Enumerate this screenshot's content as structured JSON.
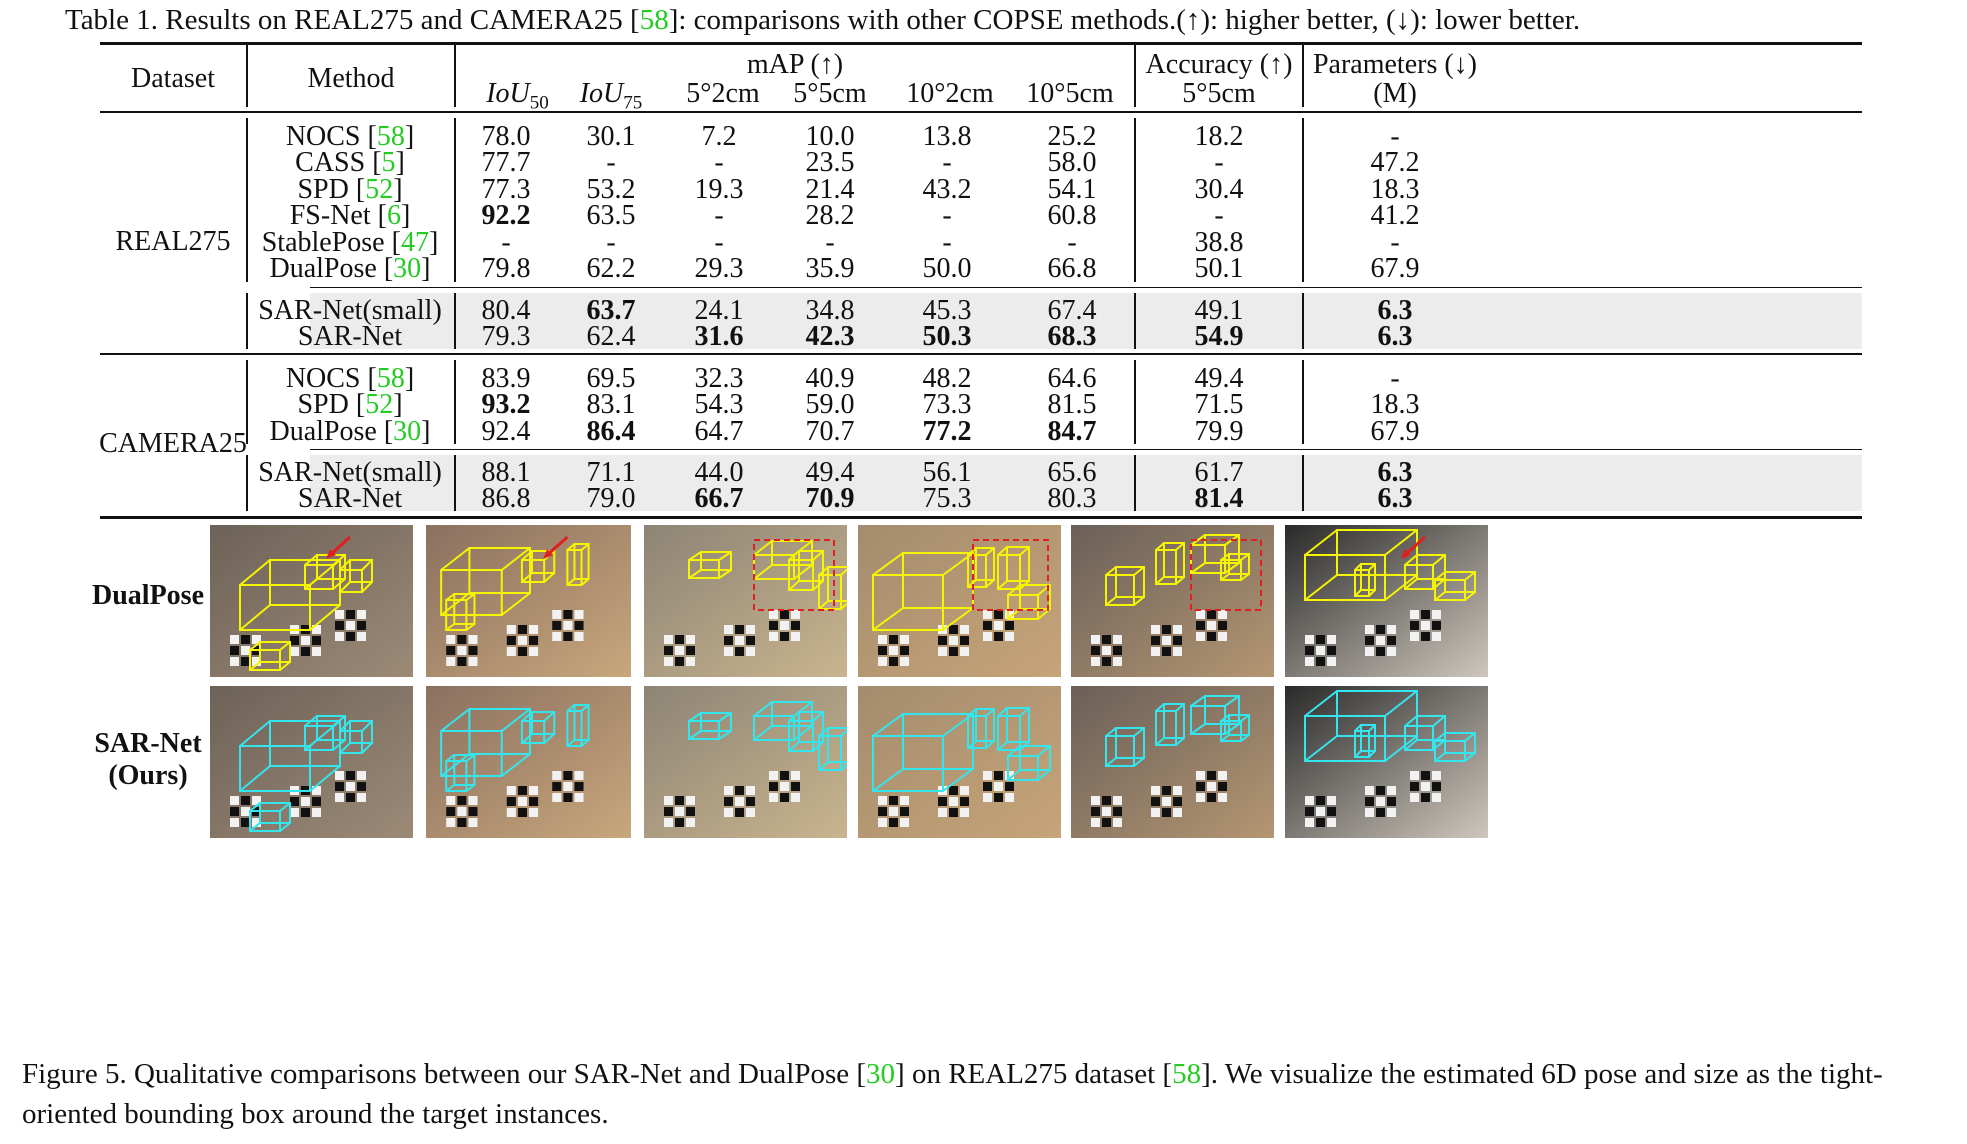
{
  "table_caption": {
    "prefix": "Table 1. Results on REAL275 and CAMERA25 [",
    "cite": "58",
    "suffix": "]: comparisons with other COPSE methods.(↑): higher better, (↓): lower better."
  },
  "header": {
    "dataset": "Dataset",
    "method": "Method",
    "map": "mAP (↑)",
    "iou50_base": "IoU",
    "iou50_sub": "50",
    "iou75_base": "IoU",
    "iou75_sub": "75",
    "c3": "5°2cm",
    "c4": "5°5cm",
    "c5": "10°2cm",
    "c6": "10°5cm",
    "accuracy": "Accuracy (↑)",
    "accuracy_sub": "5°5cm",
    "params": "Parameters (↓)",
    "params_unit": "(M)"
  },
  "groups": [
    {
      "dataset": "REAL275",
      "blocks": [
        [
          {
            "method": "NOCS",
            "cite": "58",
            "v": [
              "78.0",
              "30.1",
              "7.2",
              "10.0",
              "13.8",
              "25.2",
              "18.2",
              "-"
            ],
            "bold": []
          },
          {
            "method": "CASS",
            "cite": "5",
            "v": [
              "77.7",
              "-",
              "-",
              "23.5",
              "-",
              "58.0",
              "-",
              "47.2"
            ],
            "bold": []
          },
          {
            "method": "SPD",
            "cite": "52",
            "v": [
              "77.3",
              "53.2",
              "19.3",
              "21.4",
              "43.2",
              "54.1",
              "30.4",
              "18.3"
            ],
            "bold": []
          },
          {
            "method": "FS-Net",
            "cite": "6",
            "v": [
              "92.2",
              "63.5",
              "-",
              "28.2",
              "-",
              "60.8",
              "-",
              "41.2"
            ],
            "bold": [
              0
            ]
          },
          {
            "method": "StablePose",
            "cite": "47",
            "v": [
              "-",
              "-",
              "-",
              "-",
              "-",
              "-",
              "38.8",
              "-"
            ],
            "bold": []
          },
          {
            "method": "DualPose",
            "cite": "30",
            "v": [
              "79.8",
              "62.2",
              "29.3",
              "35.9",
              "50.0",
              "66.8",
              "50.1",
              "67.9"
            ],
            "bold": []
          }
        ],
        [
          {
            "method": "SAR-Net(small)",
            "cite": "",
            "v": [
              "80.4",
              "63.7",
              "24.1",
              "34.8",
              "45.3",
              "67.4",
              "49.1",
              "6.3"
            ],
            "bold": [
              1,
              7
            ]
          },
          {
            "method": "SAR-Net",
            "cite": "",
            "v": [
              "79.3",
              "62.4",
              "31.6",
              "42.3",
              "50.3",
              "68.3",
              "54.9",
              "6.3"
            ],
            "bold": [
              2,
              3,
              4,
              5,
              6,
              7
            ]
          }
        ]
      ]
    },
    {
      "dataset": "CAMERA25",
      "blocks": [
        [
          {
            "method": "NOCS",
            "cite": "58",
            "v": [
              "83.9",
              "69.5",
              "32.3",
              "40.9",
              "48.2",
              "64.6",
              "49.4",
              "-"
            ],
            "bold": []
          },
          {
            "method": "SPD",
            "cite": "52",
            "v": [
              "93.2",
              "83.1",
              "54.3",
              "59.0",
              "73.3",
              "81.5",
              "71.5",
              "18.3"
            ],
            "bold": [
              0
            ]
          },
          {
            "method": "DualPose",
            "cite": "30",
            "v": [
              "92.4",
              "86.4",
              "64.7",
              "70.7",
              "77.2",
              "84.7",
              "79.9",
              "67.9"
            ],
            "bold": [
              1,
              4,
              5
            ]
          }
        ],
        [
          {
            "method": "SAR-Net(small)",
            "cite": "",
            "v": [
              "88.1",
              "71.1",
              "44.0",
              "49.4",
              "56.1",
              "65.6",
              "61.7",
              "6.3"
            ],
            "bold": [
              7
            ]
          },
          {
            "method": "SAR-Net",
            "cite": "",
            "v": [
              "86.8",
              "79.0",
              "66.7",
              "70.9",
              "75.3",
              "80.3",
              "81.4",
              "6.3"
            ],
            "bold": [
              2,
              3,
              6,
              7
            ]
          }
        ]
      ]
    }
  ],
  "figure": {
    "row1_label": "DualPose",
    "row2_label_1": "SAR-Net",
    "row2_label_2": "(Ours)",
    "box_colors": {
      "dualpose": "#f5f500",
      "sarnet": "#33e6ee",
      "error_marker": "#e02020"
    }
  },
  "fig_caption": {
    "p1": "Figure 5.  Qualitative comparisons between our SAR-Net and DualPose [",
    "c1": "30",
    "p2": "] on REAL275 dataset [",
    "c2": "58",
    "p3": "].  We visualize the estimated 6D pose and size as the tight-oriented bounding box around the target instances."
  }
}
